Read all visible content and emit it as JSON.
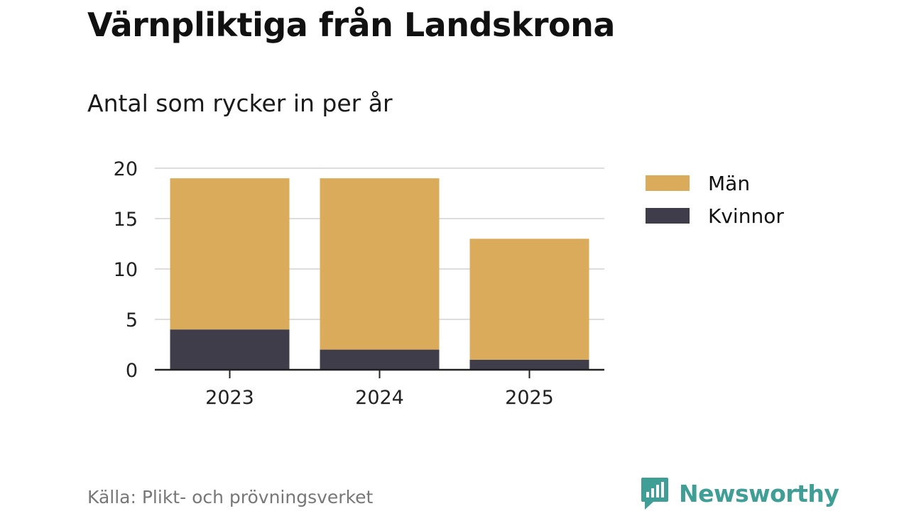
{
  "header": {
    "title": "Värnpliktiga från Landskrona",
    "subtitle": "Antal som rycker in per år"
  },
  "footer": {
    "source": "Källa: Plikt- och prövningsverket",
    "brand": "Newsworthy"
  },
  "colors": {
    "man": "#d9ab5a",
    "kvinnor": "#403d4b",
    "grid": "#dddddd",
    "axis": "#222222",
    "brand": "#3f9e96"
  },
  "chart_data": {
    "type": "bar",
    "stacked": true,
    "categories": [
      "2023",
      "2024",
      "2025"
    ],
    "series": [
      {
        "name": "Kvinnor",
        "values": [
          4,
          2,
          1
        ],
        "color": "#403d4b"
      },
      {
        "name": "Män",
        "values": [
          15,
          17,
          12
        ],
        "color": "#d9ab5a"
      }
    ],
    "legend_order": [
      "Män",
      "Kvinnor"
    ],
    "yticks": [
      0,
      5,
      10,
      15,
      20
    ],
    "ylim": [
      0,
      20
    ],
    "grid": true,
    "legend_position": "right"
  }
}
